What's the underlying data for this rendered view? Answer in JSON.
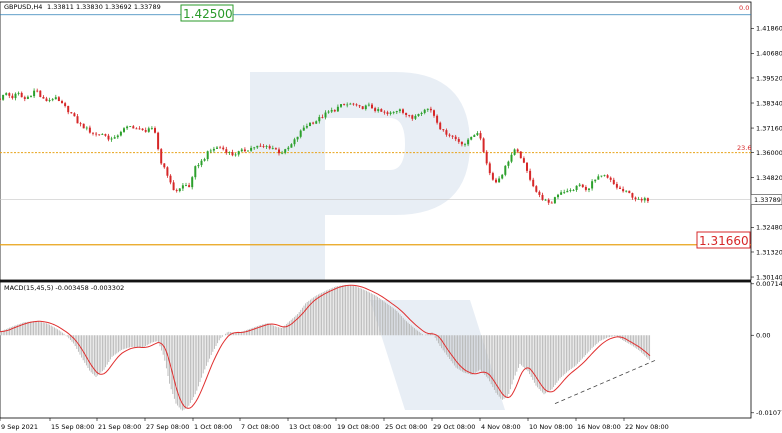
{
  "header": {
    "symbol": "GBPUSD,H4",
    "ohlc": "1.33811 1.33830 1.33692 1.33789"
  },
  "colors": {
    "bull": "#2ca02c",
    "bear": "#d62728",
    "fib_line": "#e8a317",
    "target_green": "#2a9a2a",
    "target_red": "#d62728",
    "macd_hist": "#b5b5b5",
    "macd_signal": "#e03030",
    "watermark": "#e6edf4"
  },
  "chart_data": [
    {
      "type": "candlestick",
      "title": "GBPUSD,H4  1.33811 1.33830 1.33692 1.33789",
      "ylim": [
        1.3,
        1.431
      ],
      "ytick_values": [
        1.4186,
        1.4068,
        1.3952,
        1.3834,
        1.3716,
        1.36,
        1.3482,
        1.3366,
        1.3248,
        1.3132,
        1.3014
      ],
      "yticks": [
        "1.41860",
        "1.40680",
        "1.39520",
        "1.38340",
        "1.37160",
        "1.36000",
        "1.34820",
        "1.33660",
        "1.32480",
        "1.31320",
        "1.30140"
      ],
      "xticks": [
        "9 Sep 2021",
        "15 Sep 08:00",
        "21 Sep 08:00",
        "27 Sep 08:00",
        "1 Oct 08:00",
        "7 Oct 08:00",
        "13 Oct 08:00",
        "19 Oct 08:00",
        "25 Oct 08:00",
        "29 Oct 08:00",
        "4 Nov 08:00",
        "10 Nov 08:00",
        "16 Nov 08:00",
        "22 Nov 08:00"
      ],
      "current_price": "1.33789",
      "current_price_value": 1.33789,
      "levels": [
        {
          "label": "0.0",
          "value": 1.425
        },
        {
          "label": "23.6",
          "value": 1.36
        },
        {
          "label": "",
          "value": 1.3166
        }
      ],
      "targets": [
        {
          "label": "1.42500",
          "value": 1.425,
          "color": "green"
        },
        {
          "label": "1.31660",
          "value": 1.3166,
          "color": "red"
        }
      ],
      "close_path": [
        [
          0,
          1.3855
        ],
        [
          6,
          1.388
        ],
        [
          12,
          1.386
        ],
        [
          18,
          1.388
        ],
        [
          24,
          1.385
        ],
        [
          30,
          1.387
        ],
        [
          36,
          1.39
        ],
        [
          42,
          1.385
        ],
        [
          48,
          1.3845
        ],
        [
          54,
          1.386
        ],
        [
          60,
          1.3835
        ],
        [
          66,
          1.381
        ],
        [
          72,
          1.378
        ],
        [
          78,
          1.374
        ],
        [
          84,
          1.372
        ],
        [
          90,
          1.37
        ],
        [
          96,
          1.3685
        ],
        [
          102,
          1.369
        ],
        [
          108,
          1.367
        ],
        [
          114,
          1.366
        ],
        [
          120,
          1.37
        ],
        [
          126,
          1.3715
        ],
        [
          132,
          1.3725
        ],
        [
          138,
          1.371
        ],
        [
          144,
          1.37
        ],
        [
          150,
          1.372
        ],
        [
          156,
          1.368
        ],
        [
          160,
          1.356
        ],
        [
          166,
          1.352
        ],
        [
          172,
          1.343
        ],
        [
          178,
          1.342
        ],
        [
          184,
          1.345
        ],
        [
          190,
          1.344
        ],
        [
          196,
          1.354
        ],
        [
          202,
          1.356
        ],
        [
          208,
          1.36
        ],
        [
          214,
          1.362
        ],
        [
          220,
          1.3625
        ],
        [
          226,
          1.361
        ],
        [
          232,
          1.359
        ],
        [
          238,
          1.36
        ],
        [
          244,
          1.361
        ],
        [
          250,
          1.362
        ],
        [
          256,
          1.363
        ],
        [
          262,
          1.3625
        ],
        [
          268,
          1.363
        ],
        [
          274,
          1.362
        ],
        [
          280,
          1.36
        ],
        [
          286,
          1.361
        ],
        [
          292,
          1.364
        ],
        [
          298,
          1.368
        ],
        [
          304,
          1.372
        ],
        [
          310,
          1.374
        ],
        [
          316,
          1.375
        ],
        [
          322,
          1.377
        ],
        [
          328,
          1.379
        ],
        [
          334,
          1.38
        ],
        [
          340,
          1.382
        ],
        [
          346,
          1.3825
        ],
        [
          352,
          1.383
        ],
        [
          358,
          1.381
        ],
        [
          364,
          1.3815
        ],
        [
          370,
          1.382
        ],
        [
          376,
          1.38
        ],
        [
          382,
          1.379
        ],
        [
          388,
          1.378
        ],
        [
          394,
          1.379
        ],
        [
          400,
          1.381
        ],
        [
          406,
          1.378
        ],
        [
          412,
          1.376
        ],
        [
          418,
          1.379
        ],
        [
          424,
          1.38
        ],
        [
          430,
          1.381
        ],
        [
          436,
          1.376
        ],
        [
          442,
          1.37
        ],
        [
          448,
          1.369
        ],
        [
          454,
          1.367
        ],
        [
          460,
          1.365
        ],
        [
          466,
          1.364
        ],
        [
          472,
          1.368
        ],
        [
          478,
          1.37
        ],
        [
          484,
          1.36
        ],
        [
          490,
          1.35
        ],
        [
          496,
          1.346
        ],
        [
          502,
          1.35
        ],
        [
          508,
          1.356
        ],
        [
          514,
          1.361
        ],
        [
          520,
          1.359
        ],
        [
          526,
          1.352
        ],
        [
          532,
          1.346
        ],
        [
          538,
          1.34
        ],
        [
          544,
          1.338
        ],
        [
          550,
          1.335
        ],
        [
          556,
          1.34
        ],
        [
          562,
          1.342
        ],
        [
          568,
          1.3415
        ],
        [
          574,
          1.343
        ],
        [
          580,
          1.345
        ],
        [
          586,
          1.342
        ],
        [
          592,
          1.346
        ],
        [
          598,
          1.348
        ],
        [
          604,
          1.349
        ],
        [
          610,
          1.347
        ],
        [
          616,
          1.344
        ],
        [
          622,
          1.342
        ],
        [
          628,
          1.341
        ],
        [
          634,
          1.339
        ],
        [
          640,
          1.337
        ],
        [
          646,
          1.338
        ],
        [
          650,
          1.3379
        ]
      ]
    },
    {
      "type": "histogram",
      "title": "MACD(15,45,5) -0.003458 -0.003302",
      "indicator": "MACD(15,45,5)",
      "values_text": "-0.003458 -0.003302",
      "ylim": [
        -0.0115,
        0.0074
      ],
      "ytick_values": [
        0.007149,
        0.0,
        -0.010776
      ],
      "yticks": [
        "0.007149",
        "0.00",
        "-0.010776"
      ],
      "hist_path": [
        [
          0,
          0.0005
        ],
        [
          12,
          0.0012
        ],
        [
          24,
          0.0018
        ],
        [
          36,
          0.002
        ],
        [
          48,
          0.0016
        ],
        [
          58,
          0.0008
        ],
        [
          66,
          0.0
        ],
        [
          74,
          -0.0012
        ],
        [
          82,
          -0.0032
        ],
        [
          90,
          -0.005
        ],
        [
          96,
          -0.0058
        ],
        [
          104,
          -0.0048
        ],
        [
          112,
          -0.003
        ],
        [
          122,
          -0.002
        ],
        [
          132,
          -0.0016
        ],
        [
          142,
          -0.0018
        ],
        [
          152,
          -0.001
        ],
        [
          158,
          -0.0008
        ],
        [
          164,
          -0.003
        ],
        [
          170,
          -0.007
        ],
        [
          176,
          -0.0095
        ],
        [
          182,
          -0.0105
        ],
        [
          188,
          -0.01
        ],
        [
          196,
          -0.008
        ],
        [
          204,
          -0.005
        ],
        [
          212,
          -0.0025
        ],
        [
          220,
          -0.0005
        ],
        [
          228,
          0.0005
        ],
        [
          236,
          0.0003
        ],
        [
          244,
          0.0006
        ],
        [
          252,
          0.001
        ],
        [
          260,
          0.0014
        ],
        [
          268,
          0.0017
        ],
        [
          276,
          0.0012
        ],
        [
          282,
          0.001
        ],
        [
          290,
          0.002
        ],
        [
          298,
          0.003
        ],
        [
          306,
          0.0045
        ],
        [
          316,
          0.0055
        ],
        [
          326,
          0.0062
        ],
        [
          336,
          0.0068
        ],
        [
          346,
          0.007
        ],
        [
          356,
          0.0068
        ],
        [
          366,
          0.0062
        ],
        [
          376,
          0.0055
        ],
        [
          386,
          0.0045
        ],
        [
          396,
          0.0035
        ],
        [
          406,
          0.002
        ],
        [
          416,
          0.0008
        ],
        [
          424,
          0.0
        ],
        [
          432,
          0.0004
        ],
        [
          440,
          -0.0015
        ],
        [
          448,
          -0.003
        ],
        [
          456,
          -0.0045
        ],
        [
          464,
          -0.0052
        ],
        [
          472,
          -0.0055
        ],
        [
          480,
          -0.0048
        ],
        [
          488,
          -0.006
        ],
        [
          496,
          -0.008
        ],
        [
          502,
          -0.009
        ],
        [
          508,
          -0.0085
        ],
        [
          514,
          -0.006
        ],
        [
          520,
          -0.004
        ],
        [
          528,
          -0.005
        ],
        [
          536,
          -0.007
        ],
        [
          544,
          -0.0082
        ],
        [
          552,
          -0.0075
        ],
        [
          560,
          -0.006
        ],
        [
          568,
          -0.005
        ],
        [
          576,
          -0.0042
        ],
        [
          584,
          -0.003
        ],
        [
          592,
          -0.0018
        ],
        [
          600,
          -0.0008
        ],
        [
          608,
          -0.0003
        ],
        [
          616,
          -0.0001
        ],
        [
          624,
          -0.0008
        ],
        [
          632,
          -0.0014
        ],
        [
          640,
          -0.0022
        ],
        [
          646,
          -0.003
        ],
        [
          650,
          -0.0035
        ]
      ],
      "trend_line": [
        [
          555,
          -0.0095
        ],
        [
          655,
          -0.0035
        ]
      ]
    }
  ]
}
